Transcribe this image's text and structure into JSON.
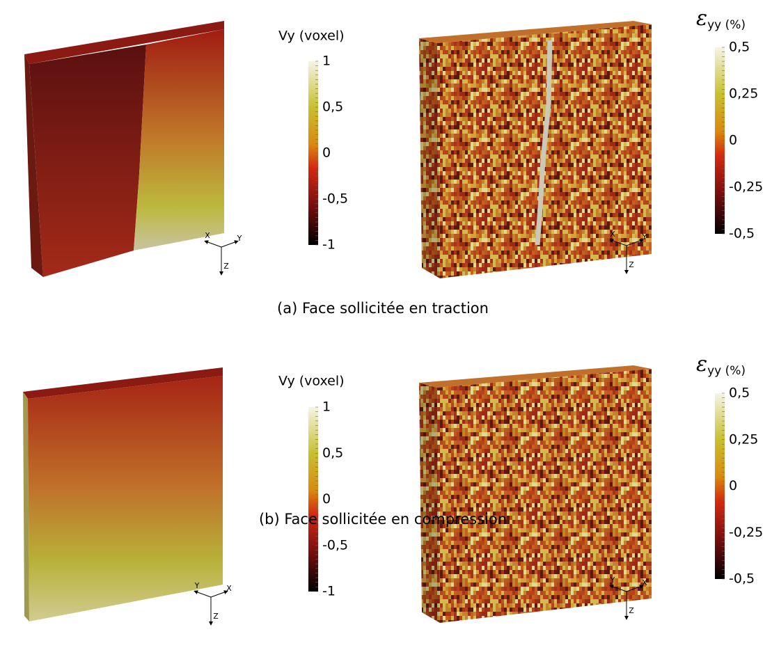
{
  "panels": [
    {
      "caption": "(a) Face sollicitée en traction",
      "displacement_colorbar": {
        "title": "Vy (voxel)",
        "ticks": [
          "1",
          "0,5",
          "0",
          "-0,5",
          "-1"
        ]
      },
      "strain_colorbar": {
        "symbol": "ε",
        "title": "yy (%)",
        "ticks": [
          "0,5",
          "0,25",
          "0",
          "-0,25",
          "-0,5"
        ]
      },
      "displacement_axes": [
        "X",
        "Y",
        "Z"
      ],
      "strain_axes": [
        "X",
        "Y",
        "Z"
      ]
    },
    {
      "caption": "(b) Face sollicitée en compression",
      "displacement_colorbar": {
        "title": "Vy (voxel)",
        "ticks": [
          "1",
          "0,5",
          "0",
          "-0,5",
          "-1"
        ]
      },
      "strain_colorbar": {
        "symbol": "ε",
        "title": "yy (%)",
        "ticks": [
          "0,5",
          "0,25",
          "0",
          "-0,25",
          "-0,5"
        ]
      },
      "displacement_axes": [
        "Y",
        "X",
        "Z"
      ],
      "strain_axes": [
        "Y",
        "X",
        "Z"
      ]
    }
  ]
}
